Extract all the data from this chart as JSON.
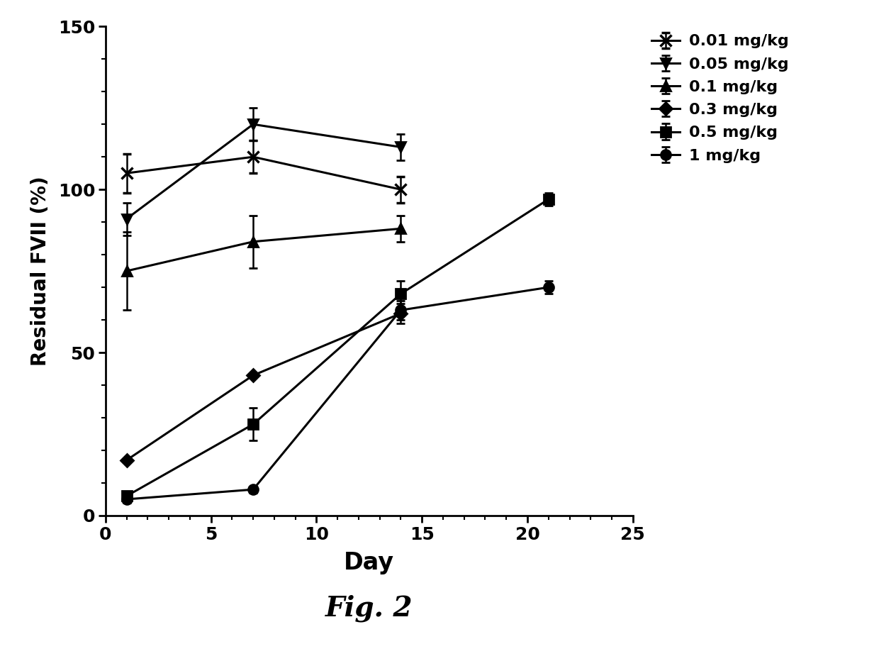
{
  "series": [
    {
      "label": "0.01 mg/kg",
      "marker": "x",
      "x": [
        1,
        7,
        14
      ],
      "y": [
        105,
        110,
        100
      ],
      "yerr": [
        6,
        5,
        4
      ]
    },
    {
      "label": "0.05 mg/kg",
      "marker": "v",
      "x": [
        1,
        7,
        14
      ],
      "y": [
        91,
        120,
        113
      ],
      "yerr": [
        5,
        5,
        4
      ]
    },
    {
      "label": "0.1 mg/kg",
      "marker": "^",
      "x": [
        1,
        7,
        14
      ],
      "y": [
        75,
        84,
        88
      ],
      "yerr": [
        12,
        8,
        4
      ]
    },
    {
      "label": "0.3 mg/kg",
      "marker": "D",
      "x": [
        1,
        7,
        14
      ],
      "y": [
        17,
        43,
        62
      ],
      "yerr": [
        0,
        0,
        3
      ]
    },
    {
      "label": "0.5 mg/kg",
      "marker": "s",
      "x": [
        1,
        7,
        14,
        21
      ],
      "y": [
        6,
        28,
        68,
        97
      ],
      "yerr": [
        1,
        5,
        4,
        2
      ]
    },
    {
      "label": "1 mg/kg",
      "marker": "o",
      "x": [
        1,
        7,
        14,
        21
      ],
      "y": [
        5,
        8,
        63,
        70
      ],
      "yerr": [
        1,
        1,
        3,
        2
      ]
    }
  ],
  "xlabel": "Day",
  "ylabel": "Residual FVII (%)",
  "xlim": [
    0,
    25
  ],
  "ylim": [
    0,
    150
  ],
  "xticks": [
    0,
    5,
    10,
    15,
    20,
    25
  ],
  "yticks": [
    0,
    50,
    100,
    150
  ],
  "figcaption": "Fig. 2",
  "line_color": "#000000",
  "line_width": 2.2,
  "capsize": 4,
  "elinewidth": 1.8
}
